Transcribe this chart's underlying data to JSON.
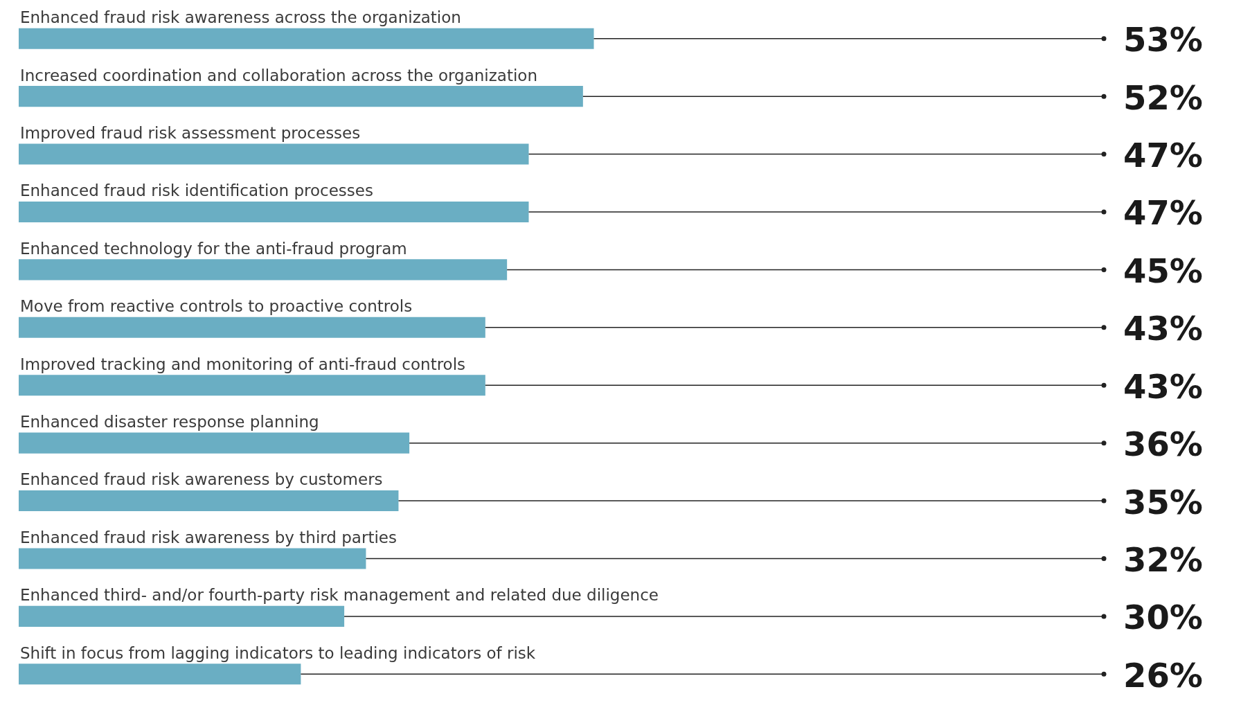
{
  "chart_data": {
    "type": "bar",
    "orientation": "horizontal",
    "categories": [
      "Enhanced fraud risk awareness across the organization",
      "Increased coordination and collaboration across the organization",
      "Improved fraud risk assessment processes",
      "Enhanced fraud risk identification processes",
      "Enhanced technology for the anti-fraud program",
      "Move from reactive controls to proactive controls",
      "Improved tracking and monitoring of anti-fraud controls",
      "Enhanced disaster response planning",
      "Enhanced fraud risk awareness by customers",
      "Enhanced fraud risk awareness by third parties",
      "Enhanced third- and/or fourth-party risk management and related due diligence",
      "Shift in focus from lagging indicators to leading indicators of risk"
    ],
    "values": [
      53,
      52,
      47,
      47,
      45,
      43,
      43,
      36,
      35,
      32,
      30,
      26
    ],
    "value_labels": [
      "53%",
      "52%",
      "47%",
      "47%",
      "45%",
      "43%",
      "43%",
      "36%",
      "35%",
      "32%",
      "30%",
      "26%"
    ],
    "color": "#6aaec3",
    "xlim": [
      0,
      100
    ],
    "legend": false
  }
}
